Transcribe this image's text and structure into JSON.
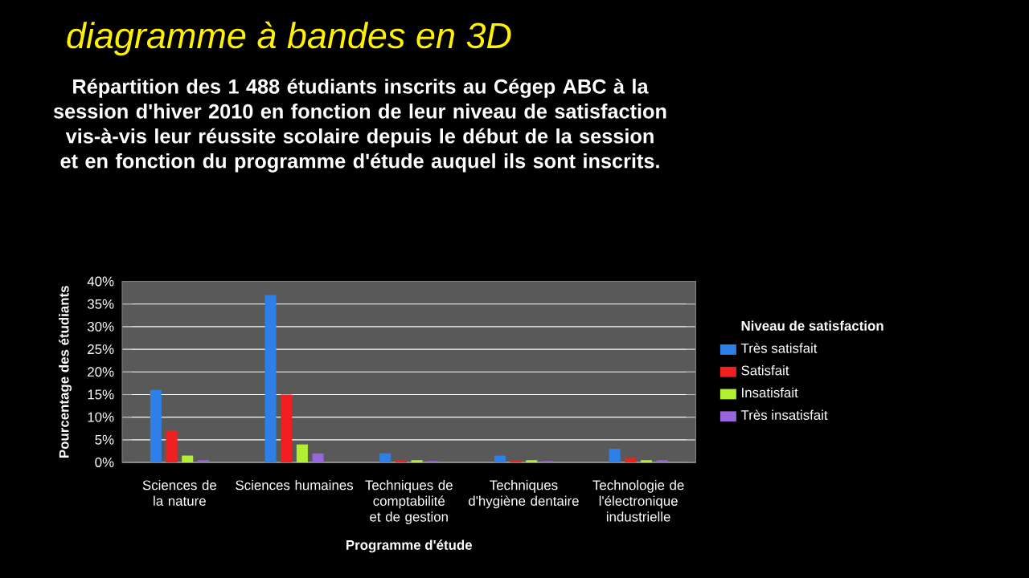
{
  "chart_data": {
    "type": "bar",
    "title": "Répartition des 1 488 étudiants inscrits au Cégep ABC à la session d'hiver 2010 en fonction de leur niveau de satisfaction vis-à-vis leur réussite scolaire depuis le début de la session et en fonction du programme d'étude auquel ils sont inscrits.",
    "annotations": [
      "diagramme à bandes en 3D"
    ],
    "xlabel": "Programme d'étude",
    "ylabel": "Pourcentage des étudiants",
    "legend_title": "Niveau de satisfaction",
    "categories": [
      "Sciences de la nature",
      "Sciences humaines",
      "Techniques de comptabilité et de gestion",
      "Techniques d'hygiène dentaire",
      "Technologie de l'électronique industrielle"
    ],
    "series": [
      {
        "name": "Très satisfait",
        "color": "#2f7fe8",
        "values": [
          16,
          37,
          2,
          1.5,
          3
        ]
      },
      {
        "name": "Satisfait",
        "color": "#f02020",
        "values": [
          7,
          15,
          0.5,
          0.5,
          1
        ]
      },
      {
        "name": "Insatisfait",
        "color": "#b0f030",
        "values": [
          1.5,
          4,
          0.5,
          0.5,
          0.5
        ]
      },
      {
        "name": "Très insatisfait",
        "color": "#9966dd",
        "values": [
          0.5,
          2,
          0.3,
          0.3,
          0.5
        ]
      }
    ],
    "ylim": [
      0,
      40
    ],
    "yticks": [
      {
        "value": 0,
        "label": "0%"
      },
      {
        "value": 5,
        "label": "5%"
      },
      {
        "value": 10,
        "label": "10%"
      },
      {
        "value": 15,
        "label": "15%"
      },
      {
        "value": 20,
        "label": "20%"
      },
      {
        "value": 25,
        "label": "25%"
      },
      {
        "value": 30,
        "label": "30%"
      },
      {
        "value": 35,
        "label": "35%"
      },
      {
        "value": 40,
        "label": "40%"
      }
    ],
    "grid": "y",
    "legend": "right"
  }
}
